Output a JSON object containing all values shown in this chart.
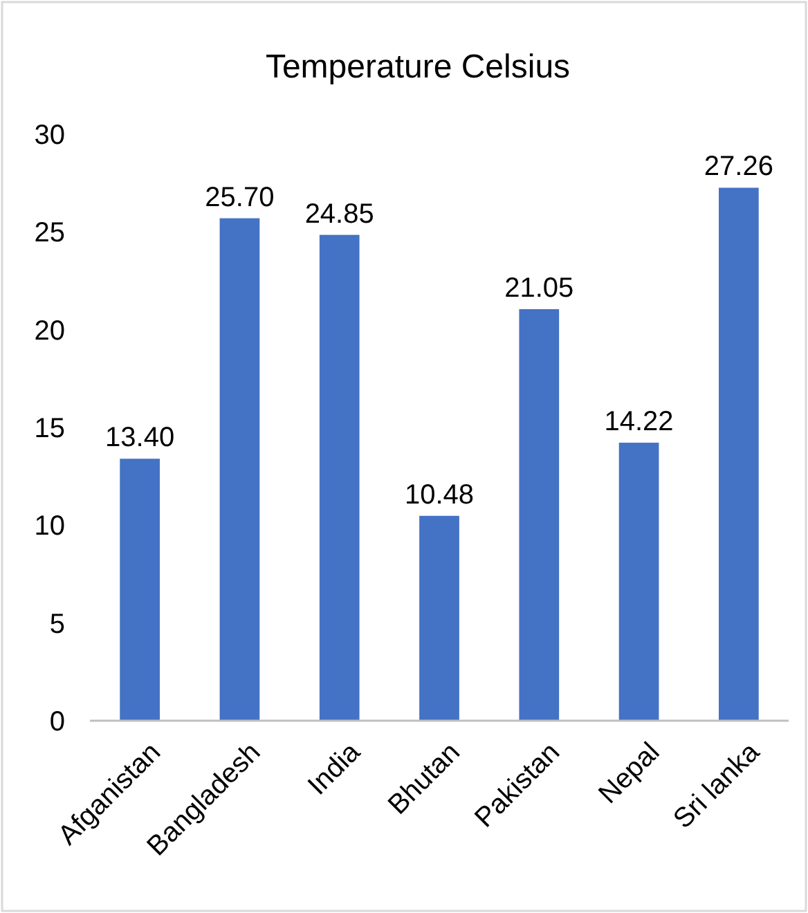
{
  "chart_data": {
    "type": "bar",
    "title": "Temperature Celsius",
    "categories": [
      "Afganistan",
      "Bangladesh",
      "India",
      "Bhutan",
      "Pakistan",
      "Nepal",
      "Sri lanka"
    ],
    "values": [
      13.4,
      25.7,
      24.85,
      10.48,
      21.05,
      14.22,
      27.26
    ],
    "value_labels": [
      "13.40",
      "25.70",
      "24.85",
      "10.48",
      "21.05",
      "14.22",
      "27.26"
    ],
    "color": "#4472c4",
    "ylim": [
      0,
      30
    ],
    "yticks": [
      0,
      5,
      10,
      15,
      20,
      25,
      30
    ],
    "grid": false
  }
}
